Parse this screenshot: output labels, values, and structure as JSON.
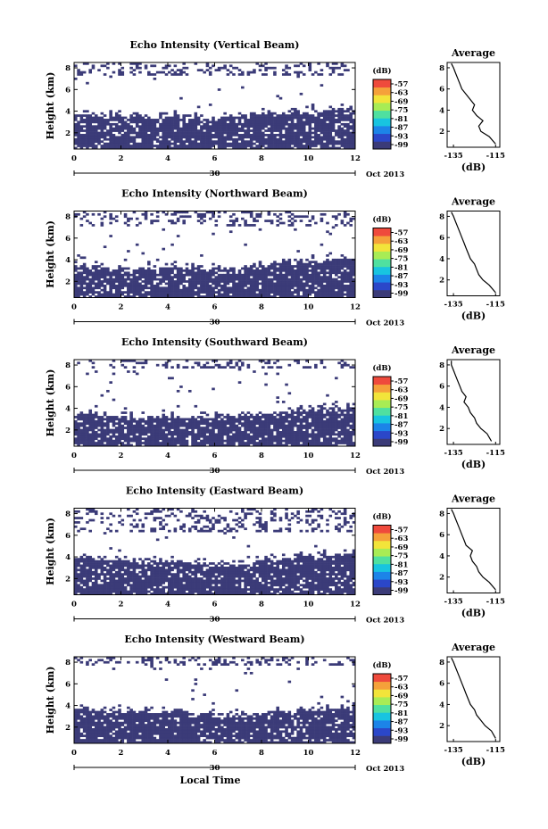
{
  "colors": {
    "echo": "#3b3b78",
    "colorbar": [
      "#3b3b78",
      "#2b47c9",
      "#1c84e8",
      "#18c4e0",
      "#4fe0a0",
      "#a8ec55",
      "#f2e43a",
      "#f5a13a",
      "#ef4a3c"
    ]
  },
  "common": {
    "x_ticks": [
      "0",
      "2",
      "4",
      "6",
      "8",
      "10",
      "12"
    ],
    "y_ticks": [
      "2",
      "4",
      "6",
      "8"
    ],
    "day_label": "30",
    "month_label": "Oct 2013",
    "ylabel": "Height (km)",
    "xlabel": "Local Time",
    "unit_label": "(dB)",
    "colorbar_ticks": [
      "-57",
      "-63",
      "-69",
      "-75",
      "-81",
      "-87",
      "-93",
      "-99"
    ],
    "avg_title": "Average",
    "avg_xticks": [
      "-135",
      "-115"
    ],
    "avg_yticks": [
      "2",
      "4",
      "6",
      "8"
    ],
    "avg_xlabel": "(dB)"
  },
  "chart_data": [
    {
      "type": "heatmap",
      "title": "Echo Intensity (Vertical Beam)",
      "xlim": [
        0,
        12
      ],
      "ylim": [
        0.5,
        8.5
      ],
      "x_unit": "local hour",
      "y_unit": "km",
      "dense_layer_top_km": [
        3.6,
        3.5,
        3.4,
        3.3,
        3.4,
        3.3,
        3.2,
        3.4,
        3.6,
        3.8,
        3.9,
        4.0,
        4.1
      ],
      "upper_cloud_km": [
        7.2,
        8.4
      ],
      "average_profile": {
        "type": "line",
        "height_km": [
          0.8,
          1.5,
          2.0,
          2.5,
          3.0,
          3.5,
          4.0,
          4.5,
          5.0,
          5.5,
          6.0,
          6.5,
          7.0,
          7.5,
          8.0,
          8.4
        ],
        "intensity_db": [
          -115,
          -118,
          -122,
          -123,
          -121,
          -124,
          -126,
          -125,
          -127,
          -129,
          -131,
          -132,
          -133,
          -134,
          -135,
          -136
        ]
      }
    },
    {
      "type": "heatmap",
      "title": "Echo Intensity (Northward Beam)",
      "xlim": [
        0,
        12
      ],
      "ylim": [
        0.5,
        8.5
      ],
      "x_unit": "local hour",
      "y_unit": "km",
      "dense_layer_top_km": [
        3.3,
        3.1,
        3.0,
        3.0,
        3.2,
        3.2,
        3.0,
        3.1,
        3.4,
        3.6,
        3.8,
        3.9,
        4.0
      ],
      "upper_cloud_km": [
        7.0,
        8.4
      ],
      "average_profile": {
        "type": "line",
        "height_km": [
          0.8,
          1.5,
          2.0,
          2.5,
          3.0,
          3.5,
          4.0,
          4.5,
          5.0,
          5.5,
          6.0,
          6.5,
          7.0,
          7.5,
          8.0,
          8.4
        ],
        "intensity_db": [
          -115,
          -118,
          -121,
          -123,
          -124,
          -125,
          -127,
          -128,
          -129,
          -130,
          -131,
          -132,
          -133,
          -134,
          -135,
          -136
        ]
      }
    },
    {
      "type": "heatmap",
      "title": "Echo Intensity (Southward Beam)",
      "xlim": [
        0,
        12
      ],
      "ylim": [
        0.5,
        8.5
      ],
      "x_unit": "local hour",
      "y_unit": "km",
      "dense_layer_top_km": [
        3.4,
        3.2,
        3.1,
        3.0,
        3.2,
        3.1,
        3.0,
        3.2,
        3.3,
        3.6,
        3.8,
        3.9,
        4.0
      ],
      "upper_cloud_km": [
        7.6,
        8.4
      ],
      "average_profile": {
        "type": "line",
        "height_km": [
          0.8,
          1.5,
          2.0,
          2.5,
          3.0,
          3.5,
          4.0,
          4.5,
          5.0,
          5.5,
          6.0,
          6.5,
          7.0,
          7.5,
          8.0,
          8.4
        ],
        "intensity_db": [
          -117,
          -119,
          -122,
          -124,
          -125,
          -127,
          -128,
          -130,
          -129,
          -131,
          -132,
          -133,
          -134,
          -135,
          -136,
          -136
        ]
      }
    },
    {
      "type": "heatmap",
      "title": "Echo Intensity (Eastward Beam)",
      "xlim": [
        0,
        12
      ],
      "ylim": [
        0.5,
        8.5
      ],
      "x_unit": "local hour",
      "y_unit": "km",
      "dense_layer_top_km": [
        3.8,
        3.7,
        3.6,
        3.5,
        3.4,
        3.3,
        3.1,
        3.3,
        3.5,
        3.8,
        4.0,
        4.1,
        4.1
      ],
      "upper_cloud_km": [
        6.2,
        8.4
      ],
      "average_profile": {
        "type": "line",
        "height_km": [
          0.8,
          1.5,
          2.0,
          2.5,
          3.0,
          3.5,
          4.0,
          4.5,
          5.0,
          5.5,
          6.0,
          6.5,
          7.0,
          7.5,
          8.0,
          8.4
        ],
        "intensity_db": [
          -115,
          -118,
          -121,
          -123,
          -124,
          -126,
          -127,
          -126,
          -129,
          -130,
          -131,
          -132,
          -133,
          -134,
          -135,
          -136
        ]
      }
    },
    {
      "type": "heatmap",
      "title": "Echo Intensity (Westward Beam)",
      "xlim": [
        0,
        12
      ],
      "ylim": [
        0.5,
        8.5
      ],
      "x_unit": "local hour",
      "y_unit": "km",
      "dense_layer_top_km": [
        3.6,
        3.5,
        3.4,
        3.3,
        3.2,
        3.1,
        2.9,
        3.0,
        3.1,
        3.3,
        3.5,
        3.6,
        3.6
      ],
      "upper_cloud_km": [
        7.6,
        8.4
      ],
      "average_profile": {
        "type": "line",
        "height_km": [
          0.8,
          1.5,
          2.0,
          2.5,
          3.0,
          3.5,
          4.0,
          4.5,
          5.0,
          5.5,
          6.0,
          6.5,
          7.0,
          7.5,
          8.0,
          8.4
        ],
        "intensity_db": [
          -115,
          -117,
          -120,
          -122,
          -124,
          -125,
          -127,
          -128,
          -129,
          -130,
          -131,
          -132,
          -133,
          -134,
          -135,
          -136
        ]
      }
    }
  ]
}
